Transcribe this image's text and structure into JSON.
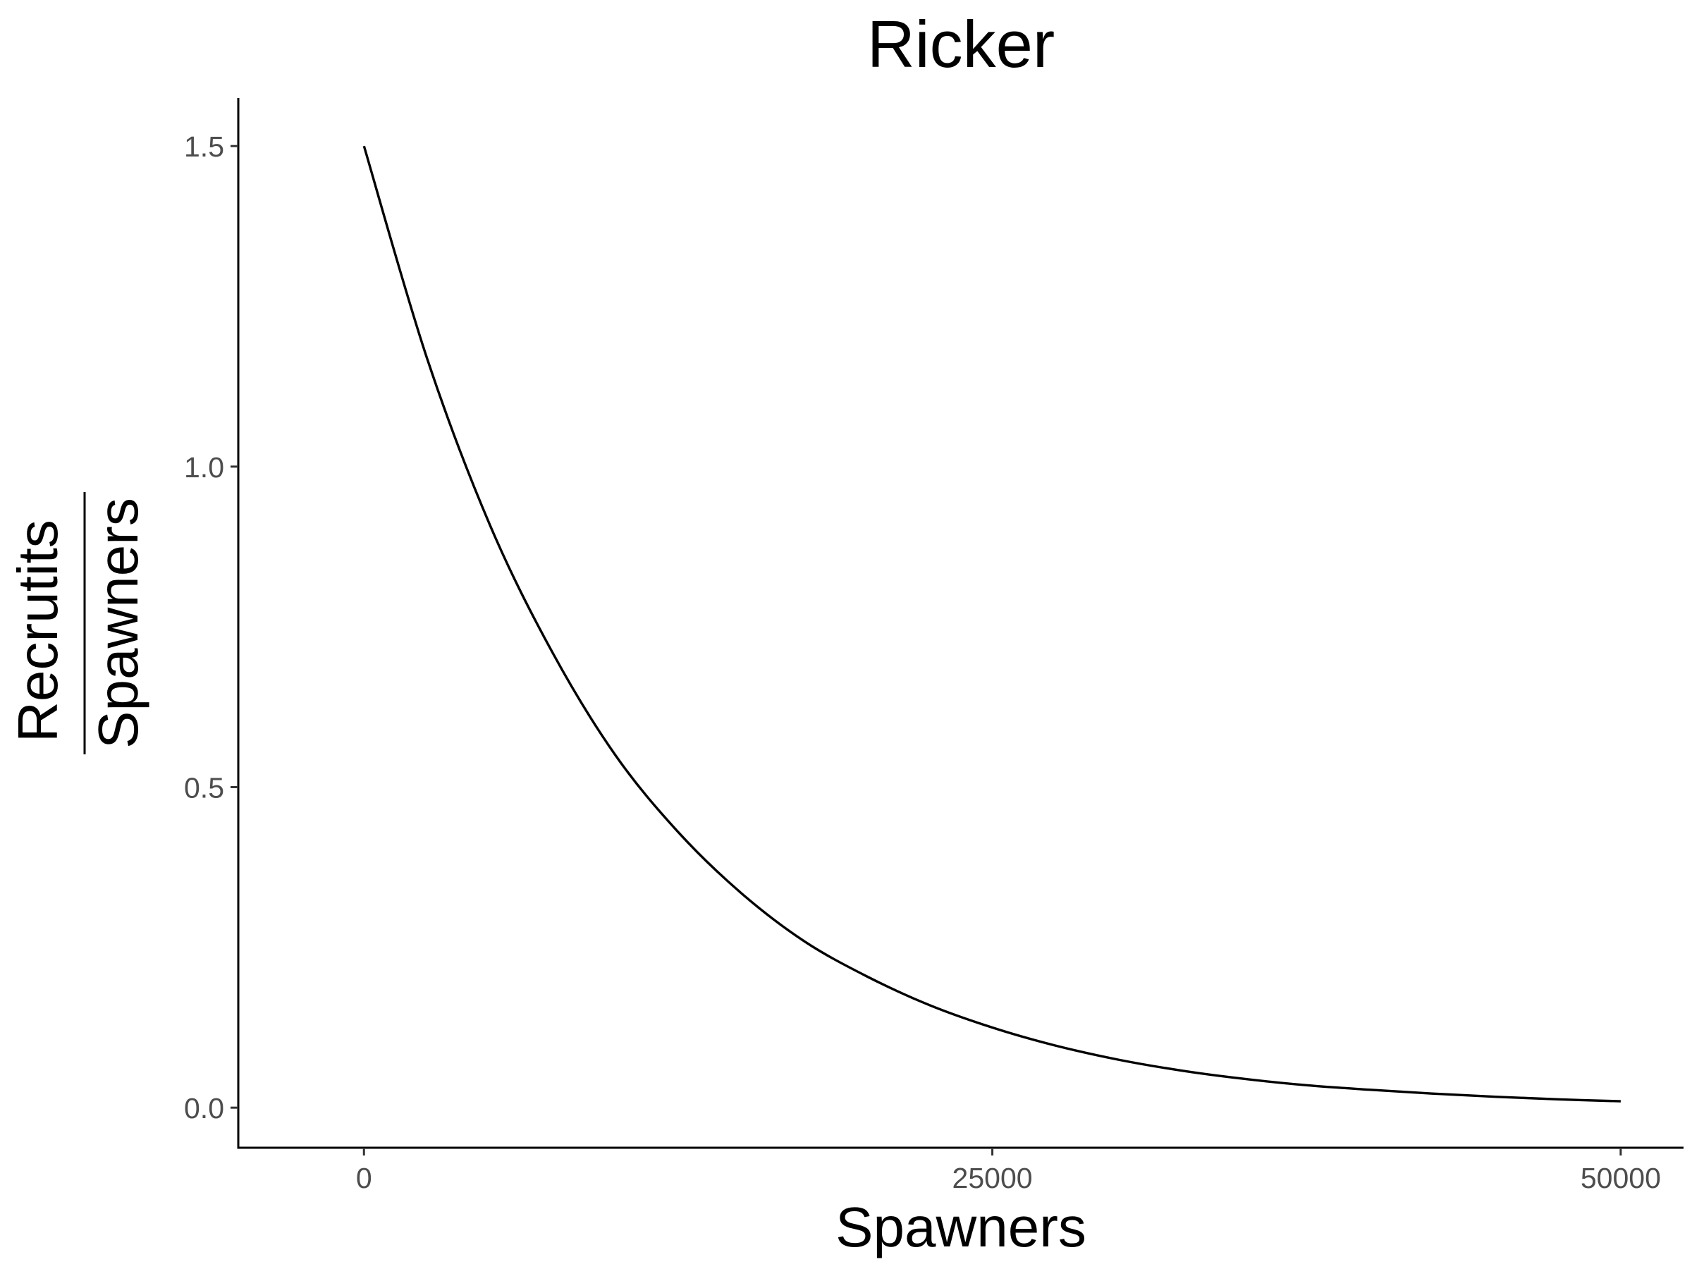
{
  "chart_data": {
    "type": "line",
    "title": "Ricker",
    "xlabel": "Spawners",
    "ylabel": {
      "numerator": "Recrutits",
      "denominator": "Spawners"
    },
    "xlim": [
      -5000,
      52500
    ],
    "ylim": [
      -0.0625,
      1.575
    ],
    "x_ticks": [
      0,
      25000,
      50000
    ],
    "x_tick_labels": [
      "0",
      "25000",
      "50000"
    ],
    "y_ticks": [
      0,
      0.5,
      1,
      1.5
    ],
    "y_tick_labels": [
      "0.0",
      "0.5",
      "1.0",
      "1.5"
    ],
    "grid": false,
    "series": [
      {
        "color": "#000000",
        "x": [
          0,
          2500,
          5000,
          7500,
          10000,
          12500,
          15000,
          17500,
          20000,
          22500,
          25000,
          27500,
          30000,
          32500,
          35000,
          37500,
          40000,
          42500,
          45000,
          47500,
          50000
        ],
        "y": [
          1.5,
          1.17,
          0.91,
          0.71,
          0.55,
          0.43,
          0.335,
          0.26,
          0.205,
          0.16,
          0.125,
          0.097,
          0.075,
          0.058,
          0.045,
          0.035,
          0.028,
          0.022,
          0.017,
          0.013,
          0.01
        ]
      }
    ]
  }
}
